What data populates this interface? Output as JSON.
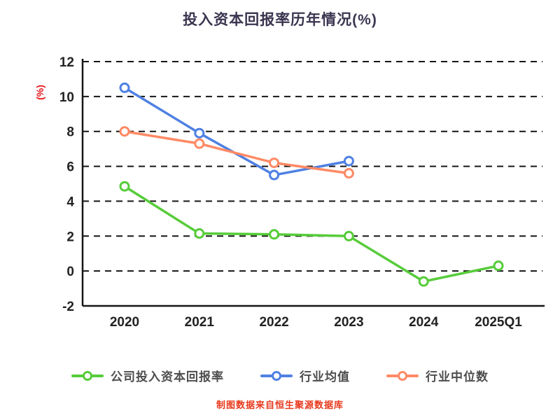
{
  "title": "投入资本回报率历年情况(%)",
  "footer": "制图数据来自恒生聚源数据库",
  "chart_data": {
    "type": "line",
    "categories": [
      "2020",
      "2021",
      "2022",
      "2023",
      "2024",
      "2025Q1"
    ],
    "series": [
      {
        "name": "公司投入资本回报率",
        "color": "#57cc3a",
        "values": [
          4.85,
          2.15,
          2.1,
          2.0,
          -0.6,
          0.3
        ]
      },
      {
        "name": "行业均值",
        "color": "#4f81e3",
        "values": [
          10.5,
          7.9,
          5.5,
          6.3,
          null,
          null
        ]
      },
      {
        "name": "行业中位数",
        "color": "#ff8a65",
        "values": [
          8.0,
          7.3,
          6.2,
          5.6,
          null,
          null
        ]
      }
    ],
    "ylabel": "(%)",
    "ylim": [
      -2,
      12
    ],
    "ytick_step": 2,
    "grid": "dashed-horizontal",
    "legend_position": "bottom",
    "marker": "open-circle"
  }
}
